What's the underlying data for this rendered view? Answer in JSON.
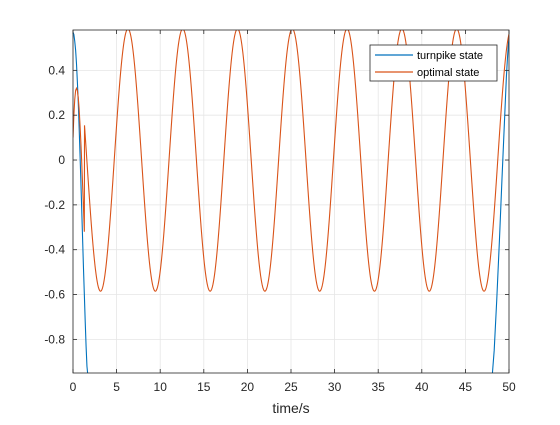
{
  "chart_data": {
    "type": "line",
    "title": "",
    "xlabel": "time/s",
    "ylabel": "",
    "xlim": [
      0,
      50
    ],
    "ylim": [
      -0.95,
      0.58
    ],
    "x_ticks": [
      0,
      5,
      10,
      15,
      20,
      25,
      30,
      35,
      40,
      45,
      50
    ],
    "x_tick_labels": [
      "0",
      "5",
      "10",
      "15",
      "20",
      "25",
      "30",
      "35",
      "40",
      "45",
      "50"
    ],
    "y_ticks": [
      -0.8,
      -0.6,
      -0.4,
      -0.2,
      0,
      0.2,
      0.4
    ],
    "y_tick_labels": [
      "-0.8",
      "-0.6",
      "-0.4",
      "-0.2",
      "0",
      "0.2",
      "0.4"
    ],
    "grid": true,
    "legend_position": "top-right",
    "series": [
      {
        "name": "turnpike state",
        "color": "#0072BD",
        "x": [
          0,
          0.1,
          0.2,
          0.3,
          0.4,
          0.5,
          0.6,
          0.7,
          0.8,
          0.9,
          1.0,
          1.1,
          1.2,
          1.3,
          1.4,
          1.5,
          1.6,
          1.8,
          2.0,
          48.0,
          48.3,
          48.6,
          48.9,
          49.2,
          49.4,
          49.6,
          49.7,
          49.8,
          49.9,
          50.0
        ],
        "y": [
          0.57,
          0.56,
          0.53,
          0.49,
          0.43,
          0.35,
          0.26,
          0.15,
          0.03,
          -0.09,
          -0.22,
          -0.35,
          -0.48,
          -0.6,
          -0.72,
          -0.83,
          -0.92,
          -1.0,
          -1.0,
          -1.0,
          -0.85,
          -0.62,
          -0.36,
          -0.08,
          0.1,
          0.28,
          0.37,
          0.44,
          0.5,
          0.55
        ]
      },
      {
        "name": "optimal state",
        "color": "#D95319",
        "phases": [
          {
            "x": [
              0,
              0.1,
              0.2,
              0.3,
              0.4,
              0.5,
              0.6,
              0.7,
              0.8,
              0.9,
              1.0,
              1.1,
              1.2,
              1.3
            ],
            "y": [
              0.1,
              0.2,
              0.27,
              0.31,
              0.32,
              0.31,
              0.28,
              0.23,
              0.16,
              0.08,
              -0.01,
              -0.11,
              -0.21,
              -0.32
            ]
          },
          {
            "note_free_oscillation": true,
            "amplitude": 0.585,
            "period": 6.283,
            "peak_x": 6.3
          }
        ]
      }
    ]
  }
}
